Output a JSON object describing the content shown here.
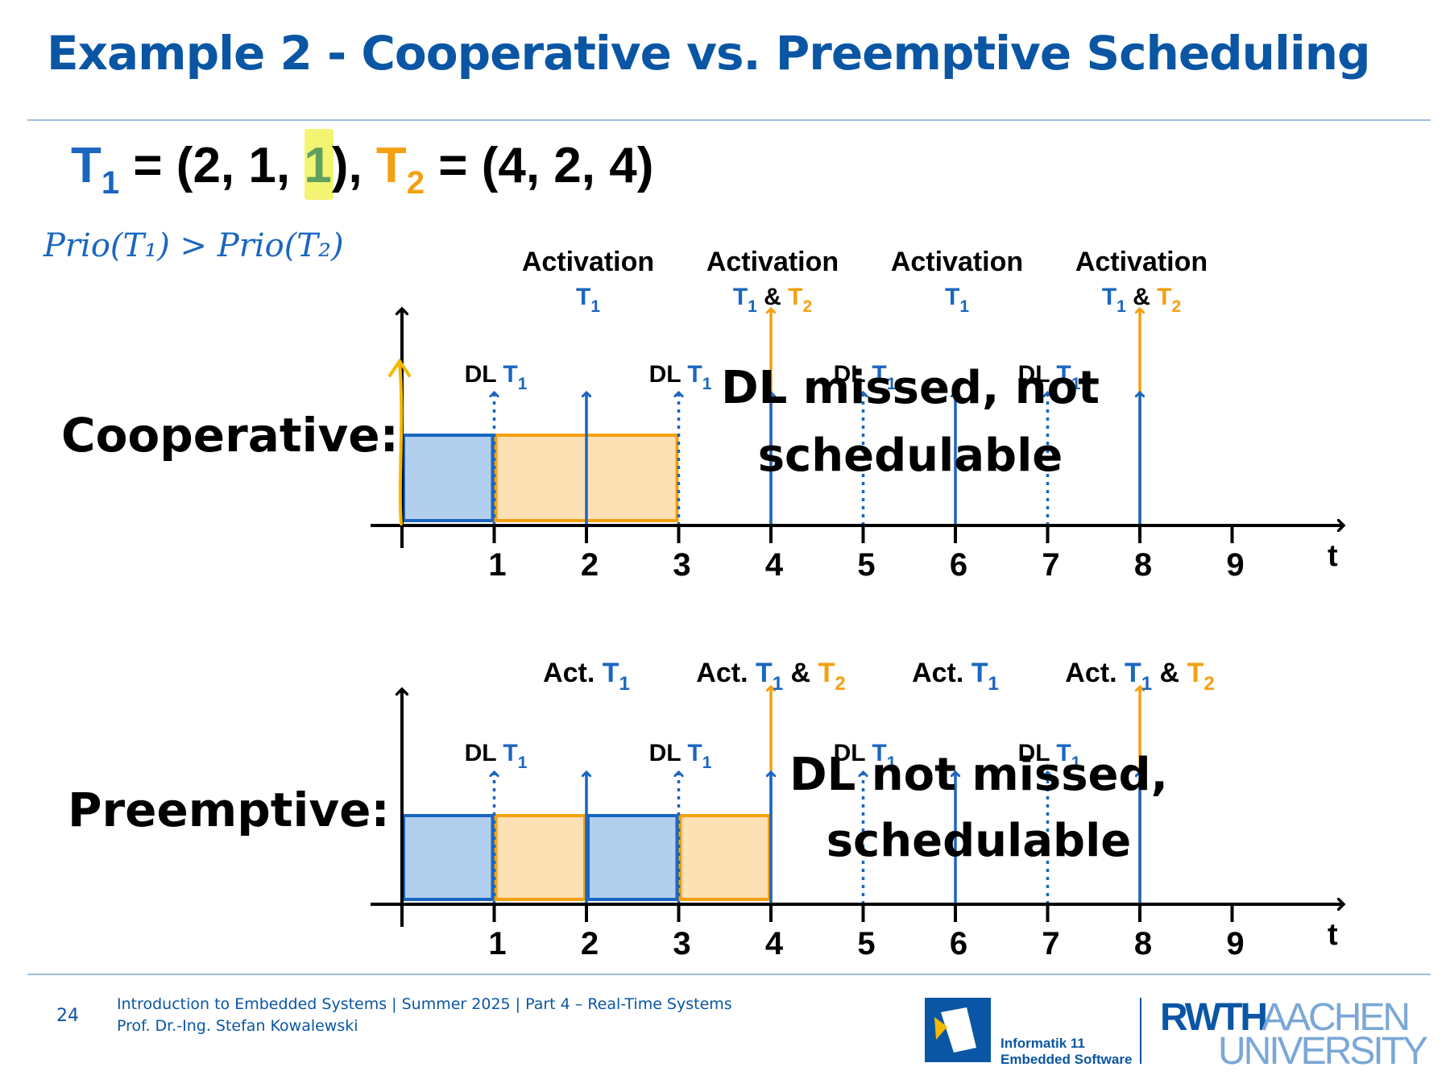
{
  "title": "Example 2 - Cooperative vs. Preemptive Scheduling",
  "tasks": {
    "t1": {
      "name": "T",
      "sub": "1",
      "params": [
        "2",
        "1",
        "1"
      ],
      "color": "#1a66c0"
    },
    "t2": {
      "name": "T",
      "sub": "2",
      "params": [
        "4",
        "2",
        "4"
      ],
      "color": "#f5a010"
    },
    "highlight_color": "#f2f25a",
    "param_highlight_color": "#5fa05f"
  },
  "annotation": "Prio(T₁) > Prio(T₂)",
  "cooperative": {
    "label": "Cooperative:",
    "activation_word": "Activation",
    "dl_prefix": "DL",
    "verdict_line1": "DL missed, not",
    "verdict_line2": "schedulable"
  },
  "preemptive": {
    "label": "Preemptive:",
    "activation_word": "Act.",
    "dl_prefix": "DL",
    "verdict_line1": "DL not missed,",
    "verdict_line2": "schedulable"
  },
  "chart_data": [
    {
      "type": "gantt",
      "name": "Cooperative:",
      "x_ticks": [
        "1",
        "2",
        "3",
        "4",
        "5",
        "6",
        "7",
        "8",
        "9"
      ],
      "x_axis_label": "t",
      "bars": [
        {
          "task": "T1",
          "start": 0,
          "end": 1
        },
        {
          "task": "T2",
          "start": 1,
          "end": 3
        }
      ],
      "activations": [
        {
          "t": 2,
          "tasks": [
            "T1"
          ]
        },
        {
          "t": 4,
          "tasks": [
            "T1",
            "T2"
          ]
        },
        {
          "t": 6,
          "tasks": [
            "T1"
          ]
        },
        {
          "t": 8,
          "tasks": [
            "T1",
            "T2"
          ]
        }
      ],
      "deadlines_T1": [
        1,
        3,
        5,
        7
      ]
    },
    {
      "type": "gantt",
      "name": "Preemptive:",
      "x_ticks": [
        "1",
        "2",
        "3",
        "4",
        "5",
        "6",
        "7",
        "8",
        "9"
      ],
      "x_axis_label": "t",
      "bars": [
        {
          "task": "T1",
          "start": 0,
          "end": 1
        },
        {
          "task": "T2",
          "start": 1,
          "end": 2
        },
        {
          "task": "T1",
          "start": 2,
          "end": 3
        },
        {
          "task": "T2",
          "start": 3,
          "end": 4
        }
      ],
      "activations": [
        {
          "t": 2,
          "tasks": [
            "T1"
          ]
        },
        {
          "t": 4,
          "tasks": [
            "T1",
            "T2"
          ]
        },
        {
          "t": 6,
          "tasks": [
            "T1"
          ]
        },
        {
          "t": 8,
          "tasks": [
            "T1",
            "T2"
          ]
        }
      ],
      "deadlines_T1": [
        1,
        3,
        5,
        7
      ]
    }
  ],
  "footer": {
    "page": "24",
    "line1": "Introduction to Embedded Systems | Summer 2025 | Part 4 – Real-Time Systems",
    "line2": "Prof. Dr.-Ing. Stefan Kowalewski",
    "chair_line1": "Informatik 11",
    "chair_line2": "Embedded Software",
    "univ_rwth": "RWTH",
    "univ_aachen": "AACHEN",
    "univ_university": "UNIVERSITY"
  }
}
